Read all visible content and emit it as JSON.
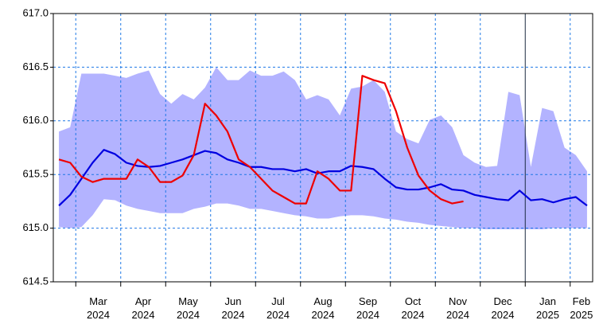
{
  "chart_data": {
    "type": "line",
    "categories": [
      null,
      null,
      null,
      null,
      "Mar\n2024",
      null,
      null,
      null,
      "Apr\n2024",
      null,
      null,
      null,
      "May\n2024",
      null,
      null,
      null,
      "Jun\n2024",
      null,
      null,
      null,
      "Jul\n2024",
      null,
      null,
      null,
      "Aug\n2024",
      null,
      null,
      null,
      "Sep\n2024",
      null,
      null,
      null,
      "Oct\n2024",
      null,
      null,
      null,
      "Nov\n2024",
      null,
      null,
      null,
      "Dec\n2024",
      null,
      null,
      null,
      "Jan\n2025",
      null,
      null,
      "Feb\n2025"
    ],
    "band": {
      "color": "#b3b3ff",
      "upper": [
        615.9,
        615.94,
        616.44,
        616.44,
        616.44,
        616.42,
        616.4,
        616.44,
        616.47,
        616.25,
        616.16,
        616.25,
        616.2,
        616.31,
        616.5,
        616.38,
        616.38,
        616.47,
        616.42,
        616.42,
        616.46,
        616.38,
        616.2,
        616.24,
        616.2,
        616.05,
        616.3,
        616.32,
        616.38,
        616.27,
        615.9,
        615.83,
        615.79,
        616.01,
        616.05,
        615.94,
        615.68,
        615.61,
        615.57,
        615.58,
        616.27,
        616.24,
        615.57,
        616.12,
        616.09,
        615.75,
        615.68,
        615.53
      ],
      "lower": [
        615.01,
        615.0,
        615.01,
        615.12,
        615.27,
        615.26,
        615.21,
        615.18,
        615.16,
        615.14,
        615.14,
        615.14,
        615.18,
        615.2,
        615.23,
        615.23,
        615.21,
        615.18,
        615.18,
        615.16,
        615.14,
        615.12,
        615.11,
        615.09,
        615.09,
        615.11,
        615.12,
        615.12,
        615.11,
        615.09,
        615.08,
        615.06,
        615.05,
        615.03,
        615.02,
        615.01,
        615.0,
        615.0,
        614.99,
        614.99,
        614.99,
        614.99,
        614.99,
        614.99,
        615.0,
        615.0,
        615.0,
        615.0
      ]
    },
    "series": [
      {
        "color": "#0000e0",
        "values": [
          615.21,
          615.31,
          615.46,
          615.61,
          615.73,
          615.69,
          615.61,
          615.58,
          615.57,
          615.58,
          615.61,
          615.64,
          615.68,
          615.72,
          615.7,
          615.64,
          615.61,
          615.57,
          615.57,
          615.55,
          615.55,
          615.53,
          615.55,
          615.51,
          615.53,
          615.53,
          615.58,
          615.57,
          615.55,
          615.46,
          615.38,
          615.36,
          615.36,
          615.38,
          615.41,
          615.36,
          615.35,
          615.31,
          615.29,
          615.27,
          615.26,
          615.35,
          615.26,
          615.27,
          615.24,
          615.27,
          615.29,
          615.21
        ]
      },
      {
        "color": "#ee0000",
        "values": [
          615.64,
          615.61,
          615.48,
          615.43,
          615.46,
          615.46,
          615.46,
          615.64,
          615.57,
          615.43,
          615.43,
          615.49,
          615.68,
          616.16,
          616.05,
          615.9,
          615.64,
          615.57,
          615.46,
          615.35,
          615.29,
          615.23,
          615.23,
          615.53,
          615.46,
          615.35,
          615.35,
          616.42,
          616.38,
          616.35,
          616.09,
          615.75,
          615.49,
          615.35,
          615.27,
          615.23,
          615.25,
          null,
          null,
          null,
          null,
          null,
          null,
          null,
          null,
          null,
          null,
          null
        ]
      }
    ],
    "ylim": [
      614.5,
      617.0
    ],
    "yticks": [
      614.5,
      {
        "value": 615,
        "label": "615.0"
      },
      615.5,
      {
        "value": 616,
        "label": "616.0"
      },
      616.5,
      {
        "value": 617,
        "label": "617.0"
      }
    ],
    "grid": true,
    "grid_color": "#1e78e6"
  }
}
